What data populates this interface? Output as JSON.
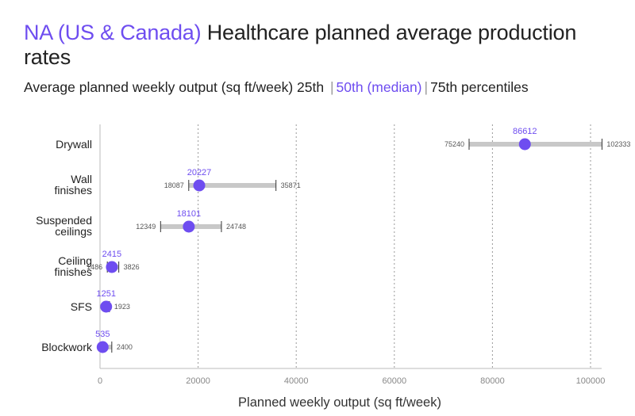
{
  "header": {
    "title_highlight": "NA (US & Canada)",
    "title_rest": " Healthcare planned average production rates",
    "subtitle_main": "Average planned weekly output (sq ft/week)  25th",
    "subtitle_sep1": "|",
    "subtitle_p50": "50th (median)",
    "subtitle_sep2": "|",
    "subtitle_p75": "75th percentiles"
  },
  "colors": {
    "median": "#6e4df0",
    "range_bar": "#c8c8c8",
    "whisker": "#333333",
    "grid": "#999999"
  },
  "chart_data": {
    "type": "dot-range",
    "title": "NA (US & Canada) Healthcare planned average production rates",
    "subtitle": "Average planned weekly output (sq ft/week) 25th | 50th (median) | 75th percentiles",
    "xlabel": "Planned weekly output (sq ft/week)",
    "ylabel": "",
    "xlim": [
      0,
      102333
    ],
    "xticks": [
      0,
      20000,
      40000,
      60000,
      80000,
      100000
    ],
    "xtick_labels": [
      "0",
      "20000",
      "40000",
      "60000",
      "80000",
      "100000"
    ],
    "grid": "vertical dotted",
    "categories": [
      {
        "label": "Drywall",
        "p25": 75240,
        "median": 86612,
        "p75": 102333
      },
      {
        "label": "Wall finishes",
        "p25": 18087,
        "median": 20227,
        "p75": 35871
      },
      {
        "label": "Suspended ceilings",
        "p25": 12349,
        "median": 18101,
        "p75": 24748
      },
      {
        "label": "Ceiling finishes",
        "p25": 1486,
        "median": 2415,
        "p75": 3826
      },
      {
        "label": "SFS",
        "p25": "",
        "median": 1251,
        "p75": 1923
      },
      {
        "label": "Blockwork",
        "p25": "",
        "median": 535,
        "p75": 2400
      }
    ]
  }
}
